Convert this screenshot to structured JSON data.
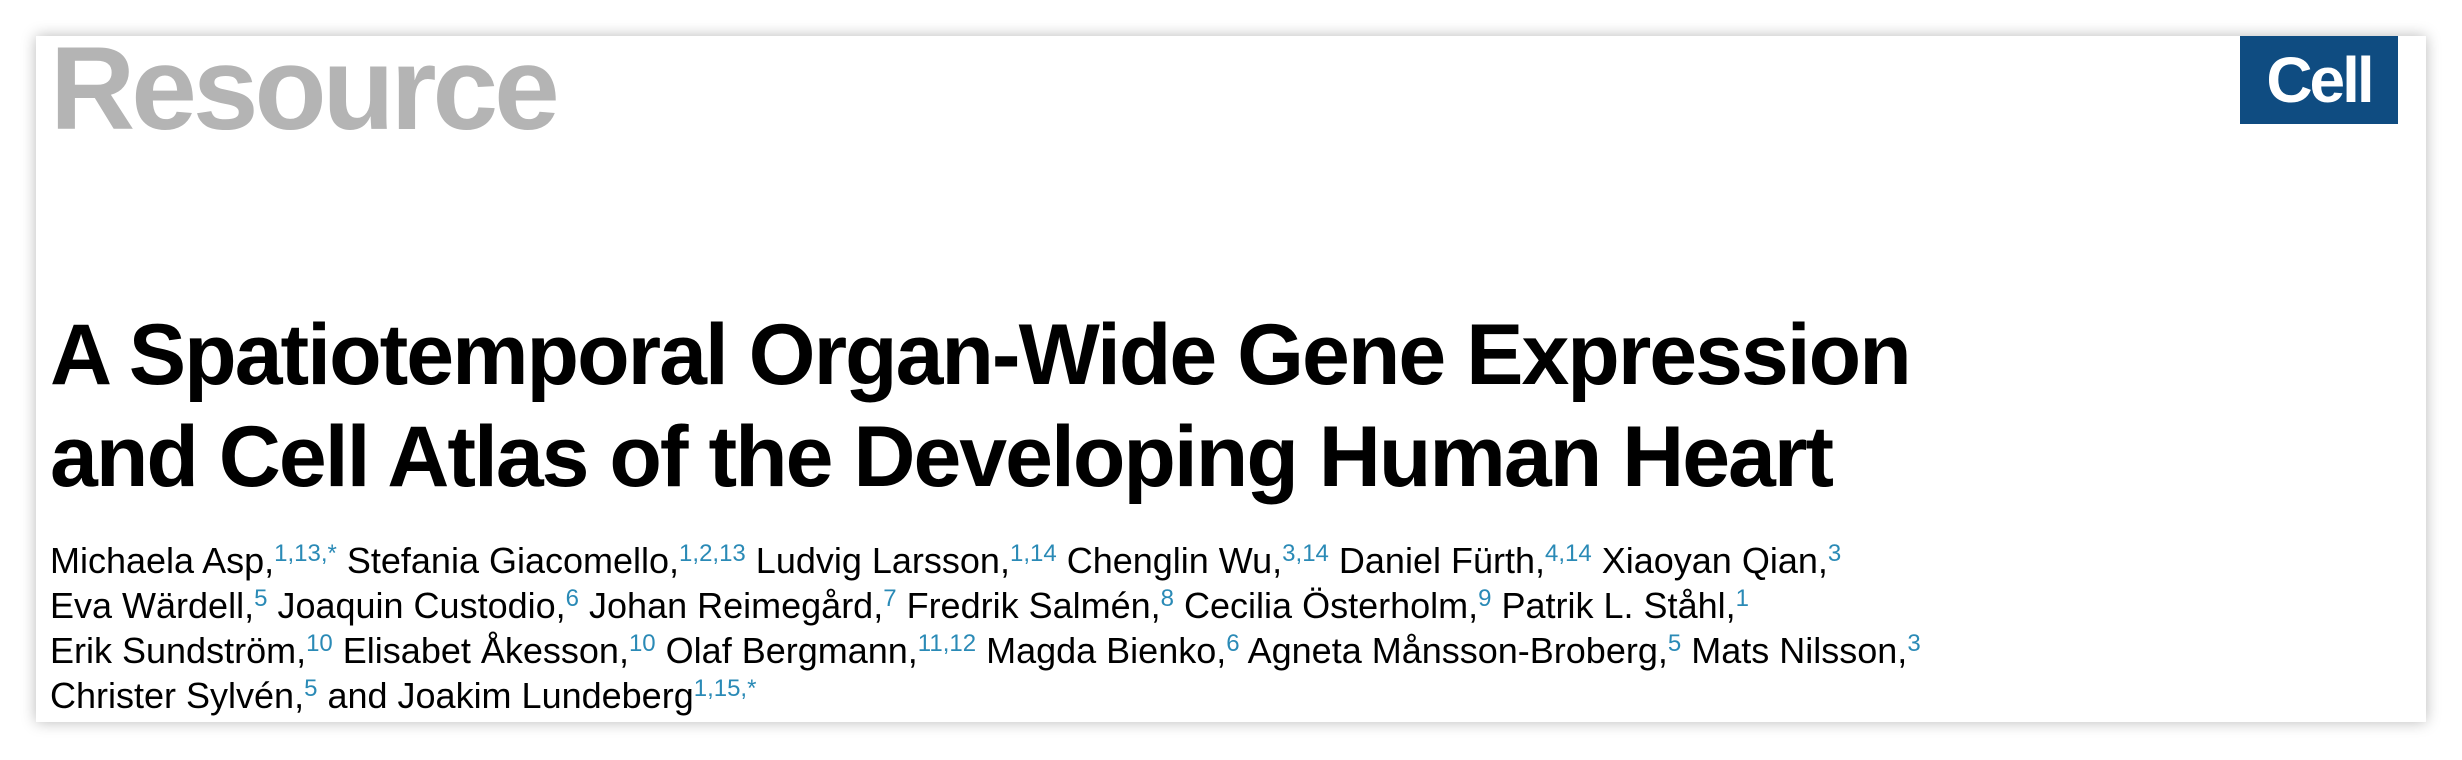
{
  "header": {
    "section_label": "Resource",
    "journal_logo": "Cell",
    "colors": {
      "section_label": "#b4b4b4",
      "logo_background": "#0f4c81",
      "affiliation": "#2a8ab6"
    }
  },
  "title": {
    "line1": "A Spatiotemporal Organ-Wide Gene Expression",
    "line2": "and Cell Atlas of the Developing Human Heart"
  },
  "authors": [
    [
      {
        "name": "Michaela Asp,",
        "aff": "1,13,*"
      },
      {
        "name": "Stefania Giacomello,",
        "aff": "1,2,13"
      },
      {
        "name": "Ludvig Larsson,",
        "aff": "1,14"
      },
      {
        "name": "Chenglin Wu,",
        "aff": "3,14"
      },
      {
        "name": "Daniel Fürth,",
        "aff": "4,14"
      },
      {
        "name": "Xiaoyan Qian,",
        "aff": "3"
      }
    ],
    [
      {
        "name": "Eva Wärdell,",
        "aff": "5"
      },
      {
        "name": "Joaquin Custodio,",
        "aff": "6"
      },
      {
        "name": "Johan Reimegård,",
        "aff": "7"
      },
      {
        "name": "Fredrik Salmén,",
        "aff": "8"
      },
      {
        "name": "Cecilia Österholm,",
        "aff": "9"
      },
      {
        "name": "Patrik L. Ståhl,",
        "aff": "1"
      }
    ],
    [
      {
        "name": "Erik Sundström,",
        "aff": "10"
      },
      {
        "name": "Elisabet Åkesson,",
        "aff": "10"
      },
      {
        "name": "Olaf Bergmann,",
        "aff": "11,12"
      },
      {
        "name": "Magda Bienko,",
        "aff": "6"
      },
      {
        "name": "Agneta Månsson-Broberg,",
        "aff": "5"
      },
      {
        "name": "Mats Nilsson,",
        "aff": "3"
      }
    ],
    [
      {
        "name": "Christer Sylvén,",
        "aff": "5"
      },
      {
        "name": "and Joakim Lundeberg",
        "aff": "1,15,*"
      }
    ]
  ]
}
